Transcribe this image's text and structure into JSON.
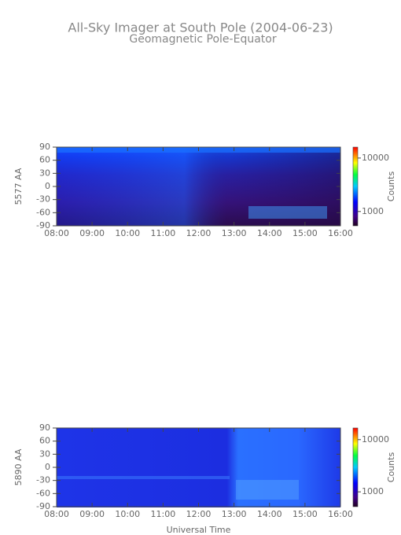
{
  "chart_data": [
    {
      "type": "heatmap",
      "title": "All-Sky Imager at South Pole (2004-06-23)",
      "subtitle": "Geomagnetic Pole-Equator",
      "ylabel": "5577 AA",
      "colorbar_label": "Counts",
      "colorbar_scale": "log",
      "xlim": [
        8,
        16
      ],
      "xticks": [
        {
          "value": 8,
          "label": "08:00"
        },
        {
          "value": 9,
          "label": "09:00"
        },
        {
          "value": 10,
          "label": "10:00"
        },
        {
          "value": 11,
          "label": "11:00"
        },
        {
          "value": 12,
          "label": "12:00"
        },
        {
          "value": 13,
          "label": "13:00"
        },
        {
          "value": 14,
          "label": "14:00"
        },
        {
          "value": 15,
          "label": "15:00"
        },
        {
          "value": 16,
          "label": "16:00"
        }
      ],
      "ylim": [
        -90,
        90
      ],
      "yticks": [
        90,
        60,
        30,
        0,
        -30,
        -60,
        -90
      ],
      "clim": [
        540,
        16000
      ],
      "cticks": [
        10000,
        1000
      ]
    },
    {
      "type": "heatmap",
      "ylabel": "5890 AA",
      "xlabel": "Universal Time",
      "colorbar_label": "Counts",
      "colorbar_scale": "log",
      "xlim": [
        8,
        16
      ],
      "xticks": [
        {
          "value": 8,
          "label": "08:00"
        },
        {
          "value": 9,
          "label": "09:00"
        },
        {
          "value": 10,
          "label": "10:00"
        },
        {
          "value": 11,
          "label": "11:00"
        },
        {
          "value": 12,
          "label": "12:00"
        },
        {
          "value": 13,
          "label": "13:00"
        },
        {
          "value": 14,
          "label": "14:00"
        },
        {
          "value": 15,
          "label": "15:00"
        },
        {
          "value": 16,
          "label": "16:00"
        }
      ],
      "ylim": [
        -90,
        90
      ],
      "yticks": [
        90,
        60,
        30,
        0,
        -30,
        -60,
        -90
      ],
      "clim": [
        520,
        16700
      ],
      "cticks": [
        10000,
        1000
      ]
    }
  ]
}
